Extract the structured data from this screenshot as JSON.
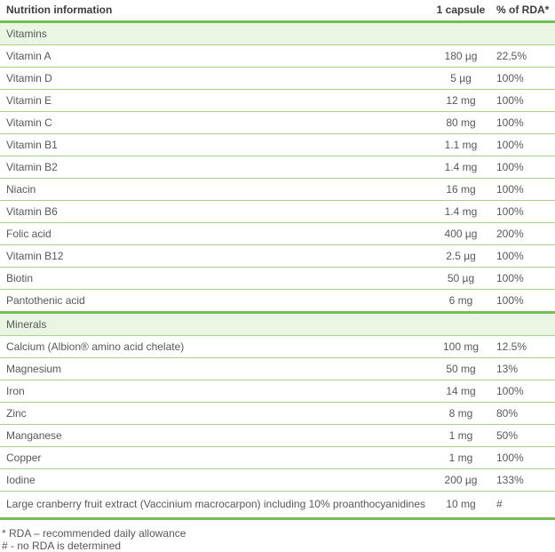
{
  "colors": {
    "accent_green": "#74bd58",
    "row_line_green": "#a6cf93",
    "section_bg_green": "#eaf6e3",
    "text_gray": "#58585a",
    "header_text_gray": "#3c3c3c"
  },
  "table": {
    "header": {
      "name": "Nutrition information",
      "amount": "1 capsule",
      "rda": "% of RDA*"
    },
    "sections": [
      {
        "label": "Vitamins",
        "rows": [
          {
            "name": "Vitamin A",
            "amount": "180 µg",
            "rda": "22,5%"
          },
          {
            "name": "Vitamin D",
            "amount": "5 µg",
            "rda": "100%"
          },
          {
            "name": "Vitamin E",
            "amount": "12 mg",
            "rda": "100%"
          },
          {
            "name": "Vitamin C",
            "amount": "80 mg",
            "rda": "100%"
          },
          {
            "name": "Vitamin B1",
            "amount": "1.1 mg",
            "rda": "100%"
          },
          {
            "name": "Vitamin B2",
            "amount": "1.4 mg",
            "rda": "100%"
          },
          {
            "name": "Niacin",
            "amount": "16 mg",
            "rda": "100%"
          },
          {
            "name": "Vitamin B6",
            "amount": "1.4 mg",
            "rda": "100%"
          },
          {
            "name": "Folic acid",
            "amount": "400 µg",
            "rda": "200%"
          },
          {
            "name": "Vitamin B12",
            "amount": "2.5 µg",
            "rda": "100%"
          },
          {
            "name": "Biotin",
            "amount": "50 µg",
            "rda": "100%"
          },
          {
            "name": "Pantothenic acid",
            "amount": "6 mg",
            "rda": "100%"
          }
        ]
      },
      {
        "label": "Minerals",
        "rows": [
          {
            "name": "Calcium (Albion® amino acid chelate)",
            "amount": "100 mg",
            "rda": "12.5%"
          },
          {
            "name": "Magnesium",
            "amount": "50 mg",
            "rda": "13%"
          },
          {
            "name": "Iron",
            "amount": "14 mg",
            "rda": "100%"
          },
          {
            "name": "Zinc",
            "amount": "8 mg",
            "rda": "80%"
          },
          {
            "name": "Manganese",
            "amount": "1 mg",
            "rda": "50%"
          },
          {
            "name": "Copper",
            "amount": "1 mg",
            "rda": "100%"
          },
          {
            "name": "Iodine",
            "amount": "200 µg",
            "rda": "133%"
          }
        ]
      }
    ],
    "final_row": {
      "name": "Large cranberry fruit extract (Vaccinium macrocarpon) including 10% proanthocyanidines",
      "amount": "10 mg",
      "rda": "#"
    },
    "footnotes": [
      "* RDA – recommended daily allowance",
      "# - no RDA is determined"
    ]
  }
}
